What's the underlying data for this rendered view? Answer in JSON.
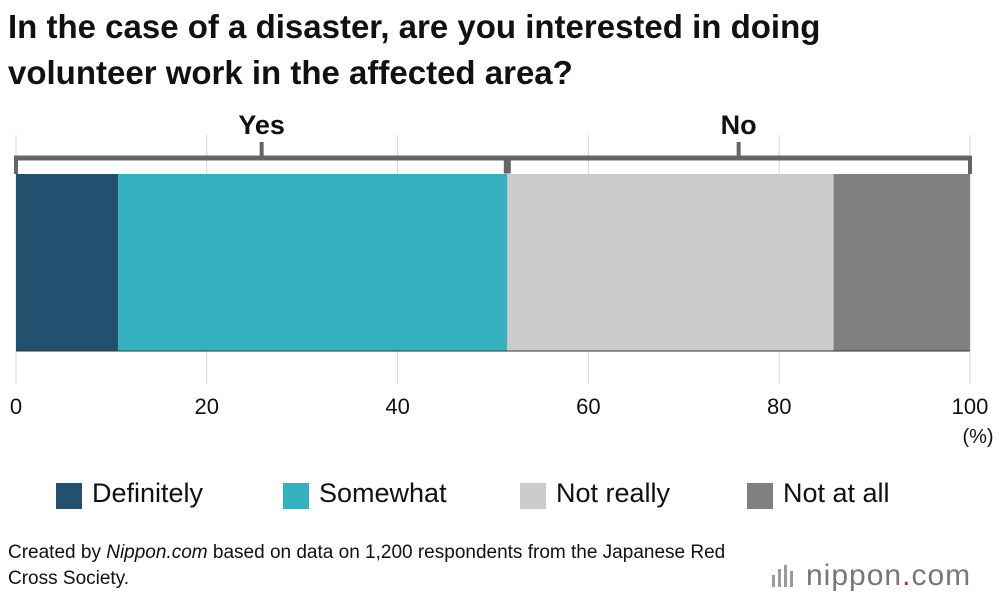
{
  "title_lines": [
    "In the case of a disaster, are you interested in doing",
    "volunteer work in the affected area?"
  ],
  "colors": {
    "Definitely": "#24506f",
    "Somewhat": "#34b0bf",
    "Not really": "#cccccc",
    "Not at all": "#808080",
    "bracket": "#666666",
    "axis": "#333333"
  },
  "chart_data": {
    "type": "bar",
    "orientation": "horizontal",
    "stacked": true,
    "series": [
      {
        "name": "Definitely",
        "values": [
          10.7
        ]
      },
      {
        "name": "Somewhat",
        "values": [
          40.8
        ]
      },
      {
        "name": "Not really",
        "values": [
          34.2
        ]
      },
      {
        "name": "Not at all",
        "values": [
          14.3
        ]
      }
    ],
    "groups": [
      {
        "label": "Yes",
        "from": 0,
        "to": 51.5
      },
      {
        "label": "No",
        "from": 51.5,
        "to": 100
      }
    ],
    "xlim": [
      0,
      100
    ],
    "ticks": [
      "0",
      "20",
      "40",
      "60",
      "80",
      "100"
    ],
    "xunit": "(%)",
    "grid": true,
    "legend": "bottom"
  },
  "legend": [
    "Definitely",
    "Somewhat",
    "Not really",
    "Not at all"
  ],
  "source": {
    "prefix": "Created by ",
    "site": "Nippon.com",
    "suffix": " based on data on 1,200 respondents from the Japanese Red Cross Society."
  },
  "logo": {
    "word": "nippon",
    "dot": ".",
    "tld": "com"
  }
}
